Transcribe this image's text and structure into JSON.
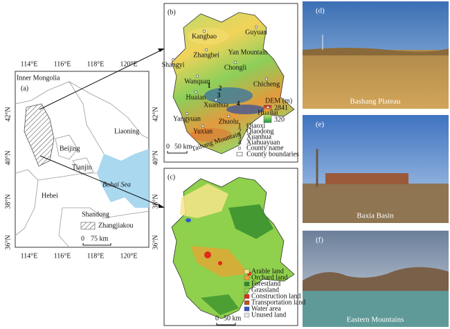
{
  "panel_a": {
    "label": "(a)",
    "lon_top": [
      "114°E",
      "116°E",
      "118°E",
      "120°E"
    ],
    "lon_bottom": [
      "114°E",
      "116°E",
      "118°E",
      "120°E"
    ],
    "lat_left": [
      "42°N",
      "40°N",
      "38°N",
      "36°N"
    ],
    "lat_right": [
      "42°N",
      "40°N",
      "38°N",
      "36°N"
    ],
    "places": [
      "Inner Mongolia",
      "Liaoning",
      "Beijing",
      "Tianjin",
      "Bohai Sea",
      "Hebei",
      "Shandong"
    ],
    "legend": "Zhangjiakou",
    "scale": [
      "0",
      "75 km"
    ]
  },
  "panel_b": {
    "label": "(b)",
    "counties": [
      "Kangbao",
      "Guyuan",
      "Zhangbei",
      "Shangyi",
      "Chongli",
      "Chicheng",
      "Wanquan",
      "Huaian",
      "Xuanhua",
      "Huailai",
      "Yangyuan",
      "Zhuolu",
      "Yuxian"
    ],
    "mountains": [
      "Yan Mountain",
      "Taihang Mountain"
    ],
    "dem": {
      "title": "DEM (m)",
      "max": 2841,
      "min": 320
    },
    "districts": [
      {
        "number": 1,
        "name": "Qiaoxi"
      },
      {
        "number": 2,
        "name": "Qiaodong"
      },
      {
        "number": 3,
        "name": "Xuanhua"
      },
      {
        "number": 4,
        "name": "Xiahuayuan"
      }
    ],
    "legend": [
      "County name",
      "County boundaries"
    ],
    "scale": [
      "0",
      "50 km"
    ]
  },
  "panel_c": {
    "label": "(c)",
    "legend": [
      {
        "name": "Arable land",
        "color": "#f7e58a"
      },
      {
        "name": "Orchard land",
        "color": "#f0a030"
      },
      {
        "name": "Forestland",
        "color": "#2f8a2a"
      },
      {
        "name": "Grassland",
        "color": "#8fd04c"
      },
      {
        "name": "Construction land",
        "color": "#e02a1c"
      },
      {
        "name": "Transportation land",
        "color": "#b8541c"
      },
      {
        "name": "Water area",
        "color": "#3558c8"
      },
      {
        "name": "Unused land",
        "color": "#e6e6e6"
      }
    ],
    "scale": [
      "0",
      "50 km"
    ]
  },
  "photos": [
    {
      "label": "(d)",
      "caption": "Bashang Plateau"
    },
    {
      "label": "(e)",
      "caption": "Baxia Basin"
    },
    {
      "label": "(f)",
      "caption": "Eastern Mountains"
    }
  ]
}
